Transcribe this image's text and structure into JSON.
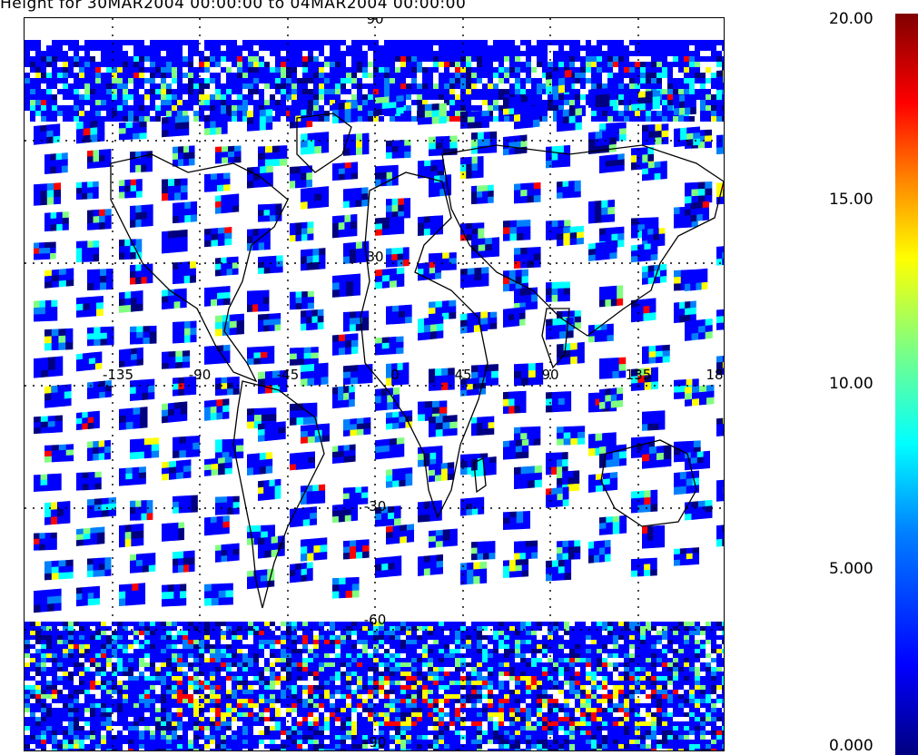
{
  "title": "Height for 30MAR2004 00:00:00 to 04MAR2004 00:00:00",
  "map": {
    "grid_lines": true,
    "lat_labels": [
      "90",
      "30",
      "-30",
      "-60",
      "-90"
    ],
    "lon_labels": [
      "-135",
      "-90",
      "-45",
      "0",
      "45",
      "90",
      "135",
      "18"
    ],
    "lat_range": [
      -90,
      90
    ],
    "lon_range": [
      -180,
      180
    ]
  },
  "colorbar": {
    "ticks": [
      "20.00",
      "15.00",
      "10.00",
      "5.000",
      "0.000"
    ],
    "range": [
      0,
      20
    ],
    "colors": [
      "#000080",
      "#0000ff",
      "#0080ff",
      "#00ffff",
      "#80ff80",
      "#ffff00",
      "#ff8000",
      "#ff0000",
      "#800000"
    ]
  }
}
